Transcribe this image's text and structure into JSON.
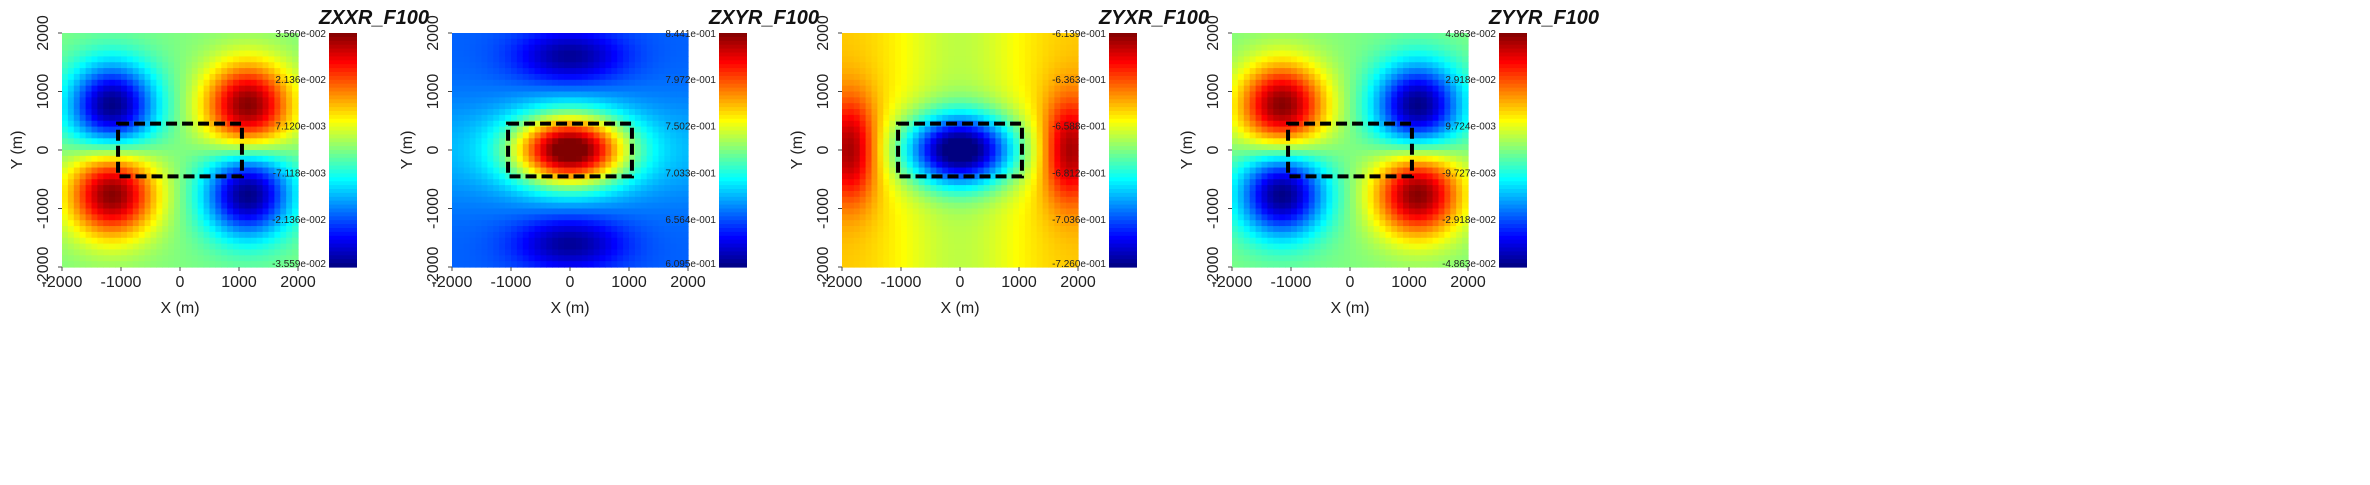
{
  "chart_data": [
    {
      "type": "heatmap",
      "title": "ZXXR_F100",
      "xlabel": "X (m)",
      "ylabel": "Y (m)",
      "xlim": [
        -2000,
        2000
      ],
      "ylim": [
        -2000,
        2000
      ],
      "xticks": [
        "-2000",
        "-1000",
        "0",
        "1000",
        "2000"
      ],
      "yticks": [
        "2000",
        "1000",
        "0",
        "-1000",
        "-2000"
      ],
      "colorbar": {
        "ticks": [
          "3.560e-002",
          "2.136e-002",
          "7.120e-003",
          "-7.118e-003",
          "-2.136e-002",
          "-3.559e-002"
        ],
        "min": -0.03559,
        "max": 0.0356
      },
      "rectangle": {
        "x": [
          -1050,
          1050
        ],
        "y": [
          -450,
          450
        ]
      },
      "field": {
        "pattern": "quadrupole",
        "sign": 1,
        "centers": [
          [
            -1150,
            750
          ],
          [
            1150,
            750
          ],
          [
            -1150,
            -750
          ],
          [
            1150,
            -750
          ]
        ],
        "signs": [
          -1,
          1,
          1,
          -1
        ]
      }
    },
    {
      "type": "heatmap",
      "title": "ZXYR_F100",
      "xlabel": "X (m)",
      "ylabel": "Y (m)",
      "xlim": [
        -2000,
        2000
      ],
      "ylim": [
        -2000,
        2000
      ],
      "xticks": [
        "-2000",
        "-1000",
        "0",
        "1000",
        "2000"
      ],
      "yticks": [
        "2000",
        "1000",
        "0",
        "-1000",
        "-2000"
      ],
      "colorbar": {
        "ticks": [
          "8.441e-001",
          "7.972e-001",
          "7.502e-001",
          "7.033e-001",
          "6.564e-001",
          "6.095e-001"
        ],
        "min": 0.6095,
        "max": 0.8441
      },
      "rectangle": {
        "x": [
          -1050,
          1050
        ],
        "y": [
          -450,
          450
        ]
      },
      "field": {
        "pattern": "center-high"
      }
    },
    {
      "type": "heatmap",
      "title": "ZYXR_F100",
      "xlabel": "X (m)",
      "ylabel": "Y (m)",
      "xlim": [
        -2000,
        2000
      ],
      "ylim": [
        -2000,
        2000
      ],
      "xticks": [
        "-2000",
        "-1000",
        "0",
        "1000",
        "2000"
      ],
      "yticks": [
        "2000",
        "1000",
        "0",
        "-1000",
        "-2000"
      ],
      "colorbar": {
        "ticks": [
          "-6.139e-001",
          "-6.363e-001",
          "-6.588e-001",
          "-6.812e-001",
          "-7.036e-001",
          "-7.260e-001"
        ],
        "min": -0.726,
        "max": -0.6139
      },
      "rectangle": {
        "x": [
          -1050,
          1050
        ],
        "y": [
          -450,
          450
        ]
      },
      "field": {
        "pattern": "center-low"
      }
    },
    {
      "type": "heatmap",
      "title": "ZYYR_F100",
      "xlabel": "X (m)",
      "ylabel": "Y (m)",
      "xlim": [
        -2000,
        2000
      ],
      "ylim": [
        -2000,
        2000
      ],
      "xticks": [
        "-2000",
        "-1000",
        "0",
        "1000",
        "2000"
      ],
      "yticks": [
        "2000",
        "1000",
        "0",
        "-1000",
        "-2000"
      ],
      "colorbar": {
        "ticks": [
          "4.863e-002",
          "2.918e-002",
          "9.724e-003",
          "-9.727e-003",
          "-2.918e-002",
          "-4.863e-002"
        ],
        "min": -0.04863,
        "max": 0.04863
      },
      "rectangle": {
        "x": [
          -1050,
          1050
        ],
        "y": [
          -450,
          450
        ]
      },
      "field": {
        "pattern": "quadrupole",
        "centers": [
          [
            -1150,
            750
          ],
          [
            1150,
            750
          ],
          [
            -1150,
            -750
          ],
          [
            1150,
            -750
          ]
        ],
        "signs": [
          1,
          -1,
          -1,
          1
        ]
      }
    }
  ]
}
